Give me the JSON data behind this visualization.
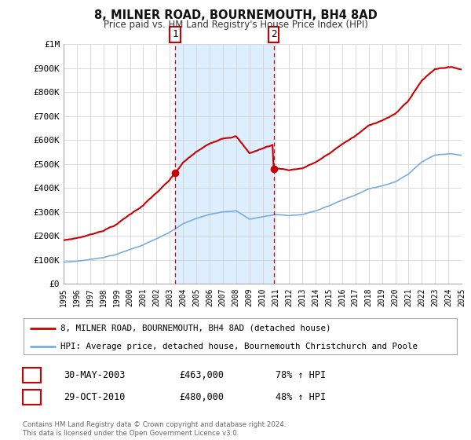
{
  "title": "8, MILNER ROAD, BOURNEMOUTH, BH4 8AD",
  "subtitle": "Price paid vs. HM Land Registry's House Price Index (HPI)",
  "legend_line1": "8, MILNER ROAD, BOURNEMOUTH, BH4 8AD (detached house)",
  "legend_line2": "HPI: Average price, detached house, Bournemouth Christchurch and Poole",
  "footer1": "Contains HM Land Registry data © Crown copyright and database right 2024.",
  "footer2": "This data is licensed under the Open Government Licence v3.0.",
  "transaction1_date": "30-MAY-2003",
  "transaction1_price": "£463,000",
  "transaction1_hpi": "78% ↑ HPI",
  "transaction2_date": "29-OCT-2010",
  "transaction2_price": "£480,000",
  "transaction2_hpi": "48% ↑ HPI",
  "sale1_x": 2003.41,
  "sale1_y": 463000,
  "sale2_x": 2010.83,
  "sale2_y": 480000,
  "vline1_x": 2003.41,
  "vline2_x": 2010.83,
  "hpi_color": "#7aaddb",
  "price_color": "#cc0000",
  "sale_marker_color": "#cc0000",
  "shade_color": "#ddeeff",
  "background_color": "#ffffff",
  "plot_background": "#ffffff",
  "ylim": [
    0,
    1000000
  ],
  "xlim": [
    1995,
    2025
  ],
  "grid_color": "#cccccc",
  "yticks": [
    0,
    100000,
    200000,
    300000,
    400000,
    500000,
    600000,
    700000,
    800000,
    900000,
    1000000
  ],
  "ytick_labels": [
    "£0",
    "£100K",
    "£200K",
    "£300K",
    "£400K",
    "£500K",
    "£600K",
    "£700K",
    "£800K",
    "£900K",
    "£1M"
  ],
  "xticks": [
    1995,
    1996,
    1997,
    1998,
    1999,
    2000,
    2001,
    2002,
    2003,
    2004,
    2005,
    2006,
    2007,
    2008,
    2009,
    2010,
    2011,
    2012,
    2013,
    2014,
    2015,
    2016,
    2017,
    2018,
    2019,
    2020,
    2021,
    2022,
    2023,
    2024,
    2025
  ],
  "vline_color": "#cc0000",
  "box_edge_color": "#cc0000",
  "legend_border_color": "#aaaaaa",
  "spine_color": "#aaaaaa"
}
